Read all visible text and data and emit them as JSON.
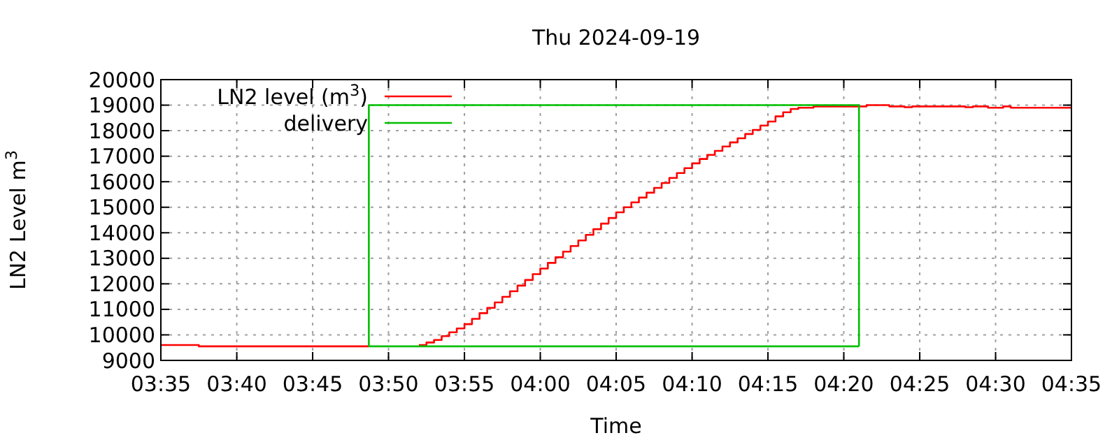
{
  "chart_data": {
    "type": "step",
    "title": "Thu 2024-09-19",
    "xlabel": "Time",
    "ylabel": "LN2 Level m$^{3}$",
    "xlim": [
      3.5833,
      4.5833
    ],
    "ylim": [
      9000,
      20000
    ],
    "xticks": [
      {
        "value": 3.5833,
        "label": "03:35"
      },
      {
        "value": 3.6667,
        "label": "03:40"
      },
      {
        "value": 3.75,
        "label": "03:45"
      },
      {
        "value": 3.8333,
        "label": "03:50"
      },
      {
        "value": 3.9167,
        "label": "03:55"
      },
      {
        "value": 4,
        "label": "04:00"
      },
      {
        "value": 4.0833,
        "label": "04:05"
      },
      {
        "value": 4.1667,
        "label": "04:10"
      },
      {
        "value": 4.25,
        "label": "04:15"
      },
      {
        "value": 4.3333,
        "label": "04:20"
      },
      {
        "value": 4.4167,
        "label": "04:25"
      },
      {
        "value": 4.5,
        "label": "04:30"
      },
      {
        "value": 4.5833,
        "label": "04:35"
      }
    ],
    "yticks": [
      9000,
      10000,
      11000,
      12000,
      13000,
      14000,
      15000,
      16000,
      17000,
      18000,
      19000,
      20000
    ],
    "grid": true,
    "legend": "top left",
    "line_style": "solid",
    "marker": "none",
    "series": [
      {
        "name": "LN2 level (m$^{3}$)",
        "color": "#ff0000",
        "x": [
          3.5833,
          3.625,
          3.8117,
          3.83,
          3.8667,
          3.875,
          3.8833,
          3.8917,
          3.9,
          3.9083,
          3.9167,
          3.925,
          3.9333,
          3.9417,
          3.95,
          3.9583,
          3.9667,
          3.975,
          3.9833,
          3.9917,
          4,
          4.0083,
          4.0167,
          4.025,
          4.0333,
          4.0417,
          4.05,
          4.0583,
          4.0667,
          4.075,
          4.0833,
          4.0917,
          4.1,
          4.1083,
          4.1167,
          4.125,
          4.1333,
          4.1417,
          4.15,
          4.1583,
          4.1667,
          4.175,
          4.1833,
          4.1917,
          4.2,
          4.2083,
          4.2167,
          4.225,
          4.2333,
          4.2417,
          4.25,
          4.2583,
          4.2667,
          4.275,
          4.2833,
          4.3,
          4.3583,
          4.3833,
          4.4,
          4.4083,
          4.4667,
          4.475,
          4.4917,
          4.5083,
          4.5167,
          4.5833
        ],
        "values": [
          9600,
          9550,
          9550,
          null,
          9600,
          9700,
          9800,
          9950,
          10100,
          10250,
          10420,
          10630,
          10850,
          11060,
          11270,
          11490,
          11710,
          11930,
          12150,
          12380,
          12600,
          12820,
          13040,
          13260,
          13480,
          13700,
          13920,
          14140,
          14360,
          14580,
          14800,
          15000,
          15190,
          15380,
          15570,
          15760,
          15950,
          16150,
          16340,
          16530,
          16720,
          16890,
          17050,
          17210,
          17380,
          17540,
          17700,
          17870,
          18030,
          18200,
          18360,
          18560,
          18720,
          18850,
          18900,
          18950,
          19000,
          18950,
          18920,
          18950,
          18920,
          18950,
          18900,
          18950,
          18900,
          18900
        ]
      },
      {
        "name": "delivery",
        "color": "#00c000",
        "type": "line",
        "x": [
          3.8117,
          3.8117,
          4.35,
          4.35
        ],
        "values": [
          9550,
          19000,
          19000,
          9550
        ]
      },
      {
        "color": "#00c000",
        "type": "line",
        "x": [
          3.8117,
          4.35
        ],
        "values": [
          9550,
          9550
        ]
      }
    ]
  }
}
